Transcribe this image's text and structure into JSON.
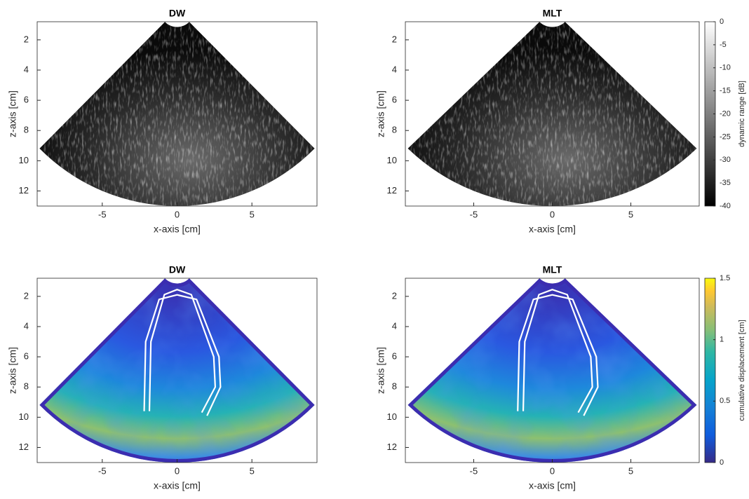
{
  "chart_data": [
    {
      "type": "image",
      "title": "DW",
      "x_label": "x-axis [cm]",
      "y_label": "z-axis [cm]",
      "colormap": "gray",
      "xlim": [
        -9.35,
        9.35
      ],
      "ylim": [
        0.8,
        13
      ],
      "y_reversed": true,
      "xticks": [
        -5,
        0,
        5
      ],
      "yticks": [
        2,
        4,
        6,
        8,
        10,
        12
      ]
    },
    {
      "type": "image",
      "title": "MLT",
      "x_label": "x-axis [cm]",
      "y_label": "z-axis [cm]",
      "colormap": "gray",
      "xlim": [
        -9.35,
        9.35
      ],
      "ylim": [
        0.8,
        13
      ],
      "y_reversed": true,
      "xticks": [
        -5,
        0,
        5
      ],
      "yticks": [
        2,
        4,
        6,
        8,
        10,
        12
      ],
      "colorbar": {
        "label": "dynamic range [dB]",
        "lim": [
          -40,
          0
        ],
        "ticks": [
          0,
          -5,
          -10,
          -15,
          -20,
          -25,
          -30,
          -35,
          -40
        ]
      }
    },
    {
      "type": "image",
      "title": "DW",
      "x_label": "x-axis [cm]",
      "y_label": "z-axis [cm]",
      "colormap": "parula",
      "xlim": [
        -9.35,
        9.35
      ],
      "ylim": [
        0.8,
        13
      ],
      "y_reversed": true,
      "xticks": [
        -5,
        0,
        5
      ],
      "yticks": [
        2,
        4,
        6,
        8,
        10,
        12
      ]
    },
    {
      "type": "image",
      "title": "MLT",
      "x_label": "x-axis [cm]",
      "y_label": "z-axis [cm]",
      "colormap": "parula",
      "xlim": [
        -9.35,
        9.35
      ],
      "ylim": [
        0.8,
        13
      ],
      "y_reversed": true,
      "xticks": [
        -5,
        0,
        5
      ],
      "yticks": [
        2,
        4,
        6,
        8,
        10,
        12
      ],
      "colorbar": {
        "label": "cumulative displacement [cm]",
        "lim": [
          0,
          1.5
        ],
        "ticks": [
          0,
          0.5,
          1,
          1.5
        ]
      }
    }
  ]
}
